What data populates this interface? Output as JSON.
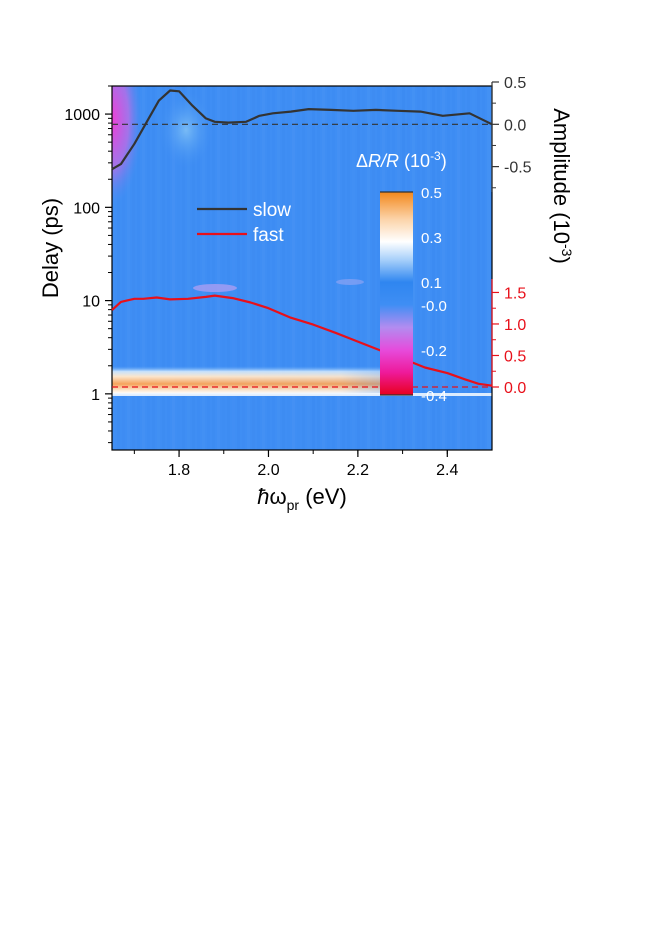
{
  "chart_data": {
    "type": "heatmap",
    "title": "",
    "xlabel": {
      "hbar": "ħ",
      "omega": "ω",
      "sub": "pr",
      "unit": " (eV)"
    },
    "ylabel": "Delay (ps)",
    "xlim": [
      1.65,
      2.5
    ],
    "ylim": [
      0.25,
      2000
    ],
    "y_scale": "log",
    "x_ticks": [
      "1.8",
      "2.0",
      "2.2",
      "2.4"
    ],
    "x_tick_values": [
      1.8,
      2.0,
      2.2,
      2.4
    ],
    "y_ticks": [
      "1",
      "10",
      "100",
      "1000"
    ],
    "y_tick_values": [
      1,
      10,
      100,
      1000
    ],
    "right_axis_top": {
      "label": {
        "text": "Amplitude (10",
        "sup": "-3",
        "close": ")"
      },
      "color": "#333333",
      "ticks": [
        "0.5",
        "0.0",
        "-0.5"
      ],
      "tick_values": [
        0.5,
        0.0,
        -0.5
      ],
      "range": [
        -0.8,
        0.5
      ]
    },
    "right_axis_bottom": {
      "color": "#e8101a",
      "ticks": [
        "1.5",
        "1.0",
        "0.5",
        "0.0"
      ],
      "tick_values": [
        1.5,
        1.0,
        0.5,
        0.0
      ],
      "range": [
        0.0,
        1.65
      ]
    },
    "colorbar": {
      "title": {
        "delta": "Δ",
        "rr": "R/R",
        "open": " (10",
        "sup": "-3",
        "close": ")"
      },
      "ticks": [
        "0.5",
        "0.3",
        "0.1",
        "-0.0",
        "-0.2",
        "-0.4"
      ],
      "tick_values": [
        0.5,
        0.3,
        0.1,
        0.0,
        -0.2,
        -0.4
      ],
      "range": [
        -0.4,
        0.5
      ],
      "stops": [
        {
          "v": -0.4,
          "c": "#e8001e"
        },
        {
          "v": -0.3,
          "c": "#ee1a9a"
        },
        {
          "v": -0.2,
          "c": "#e64bdc"
        },
        {
          "v": -0.1,
          "c": "#b28cf0"
        },
        {
          "v": 0.0,
          "c": "#3f8ef4"
        },
        {
          "v": 0.1,
          "c": "#2f86f0"
        },
        {
          "v": 0.2,
          "c": "#a8d0fa"
        },
        {
          "v": 0.28,
          "c": "#ffffff"
        },
        {
          "v": 0.38,
          "c": "#fcd3a8"
        },
        {
          "v": 0.5,
          "c": "#f2881c"
        }
      ]
    },
    "legend": {
      "placement": "upper-center"
    },
    "series": [
      {
        "name": "slow",
        "color": "#333333",
        "axis": "right_top",
        "x": [
          1.65,
          1.67,
          1.7,
          1.73,
          1.755,
          1.78,
          1.8,
          1.83,
          1.86,
          1.88,
          1.91,
          1.95,
          1.98,
          2.01,
          2.05,
          2.09,
          2.14,
          2.19,
          2.24,
          2.29,
          2.34,
          2.39,
          2.45,
          2.5
        ],
        "values": [
          -0.53,
          -0.47,
          -0.23,
          0.05,
          0.28,
          0.4,
          0.39,
          0.22,
          0.07,
          0.03,
          0.02,
          0.03,
          0.1,
          0.13,
          0.15,
          0.18,
          0.17,
          0.16,
          0.17,
          0.16,
          0.15,
          0.1,
          0.13,
          0.0
        ]
      },
      {
        "name": "fast",
        "color": "#e8101a",
        "axis": "right_bottom",
        "x": [
          1.65,
          1.67,
          1.7,
          1.72,
          1.75,
          1.78,
          1.82,
          1.86,
          1.88,
          1.92,
          1.96,
          2.0,
          2.05,
          2.1,
          2.15,
          2.2,
          2.25,
          2.3,
          2.35,
          2.4,
          2.44,
          2.47,
          2.5
        ],
        "values": [
          1.22,
          1.35,
          1.4,
          1.4,
          1.42,
          1.39,
          1.4,
          1.43,
          1.45,
          1.41,
          1.34,
          1.25,
          1.1,
          0.99,
          0.86,
          0.72,
          0.58,
          0.45,
          0.31,
          0.22,
          0.12,
          0.05,
          0.02
        ]
      }
    ]
  }
}
